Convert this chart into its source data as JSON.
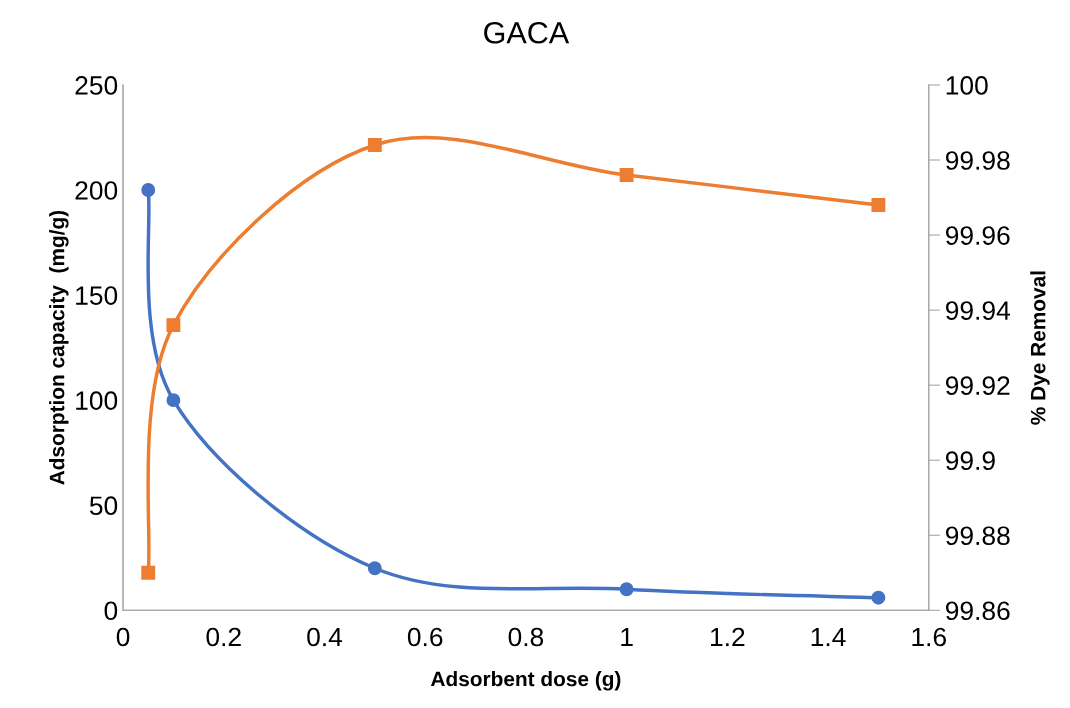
{
  "chart_data": {
    "type": "line",
    "title": "GACA",
    "xlabel": "Adsorbent dose (g)",
    "ylabel": "Adsorption capacity  (mg/g)",
    "y2label": "% Dye Removal",
    "x": [
      0.05,
      0.1,
      0.5,
      1,
      1.5
    ],
    "series": [
      {
        "color": "#4472c4",
        "marker": "circle",
        "values": [
          200,
          100,
          20,
          10,
          6
        ]
      },
      {
        "color": "#ed7d31",
        "marker": "square",
        "axis": "y2",
        "values": [
          99.87,
          99.936,
          99.984,
          99.976,
          99.968
        ]
      }
    ],
    "xlim": [
      0,
      1.6
    ],
    "xticks": [
      0,
      0.2,
      0.4,
      0.6,
      0.8,
      1,
      1.2,
      1.4,
      1.6
    ],
    "ylim": [
      0,
      250
    ],
    "yticks": [
      0,
      50,
      100,
      150,
      200,
      250
    ],
    "y2lim": [
      99.86,
      100
    ],
    "y2ticks": [
      99.86,
      99.88,
      99.9,
      99.92,
      99.94,
      99.96,
      99.98,
      100
    ],
    "grid": false
  }
}
